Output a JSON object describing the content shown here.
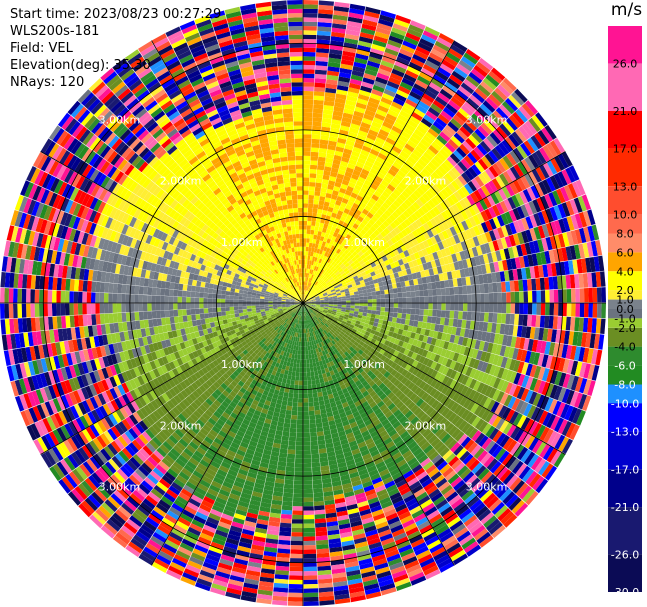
{
  "header": {
    "start_time": "Start time: 2023/08/23 00:27:29",
    "instrument": "WLS200s-181",
    "field": "Field: VEL",
    "elevation": "Elevation(deg): 35.30",
    "nrays": "NRays: 120"
  },
  "colorbar": {
    "unit": "m/s",
    "ticks": [
      {
        "label": "26.0",
        "value": 26.0
      },
      {
        "label": "21.0",
        "value": 21.0
      },
      {
        "label": "17.0",
        "value": 17.0
      },
      {
        "label": "13.0",
        "value": 13.0
      },
      {
        "label": "10.0",
        "value": 10.0
      },
      {
        "label": "8.0",
        "value": 8.0
      },
      {
        "label": "6.0",
        "value": 6.0
      },
      {
        "label": "4.0",
        "value": 4.0
      },
      {
        "label": "2.0",
        "value": 2.0
      },
      {
        "label": "1.0",
        "value": 1.0
      },
      {
        "label": "0.0",
        "value": 0.0
      },
      {
        "label": "-1.0",
        "value": -1.0
      },
      {
        "label": "-2.0",
        "value": -2.0
      },
      {
        "label": "-4.0",
        "value": -4.0
      },
      {
        "label": "-6.0",
        "value": -6.0
      },
      {
        "label": "-8.0",
        "value": -8.0
      },
      {
        "label": "-10.0",
        "value": -10.0
      },
      {
        "label": "-13.0",
        "value": -13.0
      },
      {
        "label": "-17.0",
        "value": -17.0
      },
      {
        "label": "-21.0",
        "value": -21.0
      },
      {
        "label": "-26.0",
        "value": -26.0
      },
      {
        "label": "-30.0",
        "value": -30.0
      }
    ],
    "bins": [
      {
        "lo": 26.0,
        "hi": 30.0,
        "color": "#ff1493"
      },
      {
        "lo": 21.0,
        "hi": 26.0,
        "color": "#ff69b4"
      },
      {
        "lo": 17.0,
        "hi": 21.0,
        "color": "#ff0000"
      },
      {
        "lo": 13.0,
        "hi": 17.0,
        "color": "#ff2a00"
      },
      {
        "lo": 10.0,
        "hi": 13.0,
        "color": "#ff4d2e"
      },
      {
        "lo": 8.0,
        "hi": 10.0,
        "color": "#ff6a4d"
      },
      {
        "lo": 6.0,
        "hi": 8.0,
        "color": "#ff8c69"
      },
      {
        "lo": 4.0,
        "hi": 6.0,
        "color": "#ffa500"
      },
      {
        "lo": 2.0,
        "hi": 4.0,
        "color": "#ffff00"
      },
      {
        "lo": 1.0,
        "hi": 2.0,
        "color": "#ffee33"
      },
      {
        "lo": 0.0,
        "hi": 1.0,
        "color": "#7a828c"
      },
      {
        "lo": -1.0,
        "hi": 0.0,
        "color": "#6b7380"
      },
      {
        "lo": -2.0,
        "hi": -1.0,
        "color": "#9acd32"
      },
      {
        "lo": -4.0,
        "hi": -2.0,
        "color": "#6b8e23"
      },
      {
        "lo": -6.0,
        "hi": -4.0,
        "color": "#2e8b2e"
      },
      {
        "lo": -8.0,
        "hi": -6.0,
        "color": "#228b22"
      },
      {
        "lo": -10.0,
        "hi": -8.0,
        "color": "#1e90ff"
      },
      {
        "lo": -13.0,
        "hi": -10.0,
        "color": "#0000ff"
      },
      {
        "lo": -17.0,
        "hi": -13.0,
        "color": "#0000cd"
      },
      {
        "lo": -21.0,
        "hi": -17.0,
        "color": "#00008b"
      },
      {
        "lo": -26.0,
        "hi": -21.0,
        "color": "#191970"
      },
      {
        "lo": -30.0,
        "hi": -26.0,
        "color": "#0b0b55"
      }
    ]
  },
  "chart_data": {
    "type": "heatmap",
    "subtype": "ppi-polar",
    "field": "VEL",
    "nrays": 120,
    "range_max_km": 3.5,
    "range_rings_km": [
      1.0,
      2.0,
      3.0
    ],
    "ring_labels": [
      "1.00km",
      "2.00km",
      "3.00km"
    ],
    "azimuth_lines_deg": [
      0,
      30,
      60,
      90,
      120,
      150,
      180,
      210,
      240,
      270,
      300,
      330
    ],
    "vmin": -30.0,
    "vmax": 30.0,
    "velocity_pattern": {
      "north_sector": "positive 2 to 6 m/s (yellow/orange)",
      "south_sector": "negative -1 to -8 m/s (green)",
      "east_west_near": "near 0 m/s (gray)",
      "beyond_2.3km": "noise (multicolor)"
    }
  }
}
